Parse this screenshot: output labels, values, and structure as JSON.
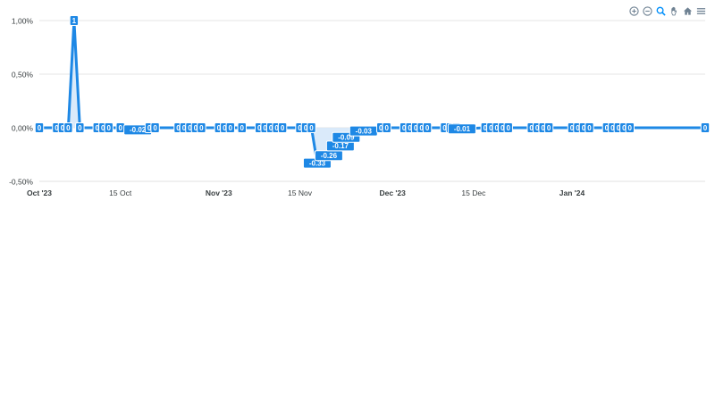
{
  "toolbar": {
    "icons": [
      "zoom-in-icon",
      "zoom-out-icon",
      "selection-zoom-icon",
      "pan-icon",
      "home-reset-icon",
      "menu-icon"
    ]
  },
  "colors": {
    "series": "#1e88e5",
    "label_bg": "#1e88e5",
    "label_text": "#ffffff",
    "area_fill": "#d6e8f9",
    "grid": "#e6e6e6",
    "axis_text": "#373d3f"
  },
  "chart_data": {
    "type": "line",
    "title": "",
    "xlabel": "",
    "ylabel": "",
    "y_tick_labels": [
      "1,00%",
      "0,50%",
      "0,00%",
      "-0,50%"
    ],
    "y_ticks": [
      1.0,
      0.5,
      0.0,
      -0.5
    ],
    "ylim": [
      -0.5,
      1.0
    ],
    "x_range": [
      "2023-10-01",
      "2024-01-24"
    ],
    "x_ticks": [
      {
        "date": "2023-10-01",
        "label": "Oct '23",
        "bold": true
      },
      {
        "date": "2023-10-15",
        "label": "15 Oct",
        "bold": false
      },
      {
        "date": "2023-11-01",
        "label": "Nov '23",
        "bold": true
      },
      {
        "date": "2023-11-15",
        "label": "15 Nov",
        "bold": false
      },
      {
        "date": "2023-12-01",
        "label": "Dec '23",
        "bold": true
      },
      {
        "date": "2023-12-15",
        "label": "15 Dec",
        "bold": false
      },
      {
        "date": "2024-01-01",
        "label": "Jan '24",
        "bold": true
      }
    ],
    "grid": true,
    "legend": "none",
    "series": [
      {
        "points": [
          {
            "x": "2023-10-01",
            "y": 0,
            "label": "0"
          },
          {
            "x": "2023-10-04",
            "y": 0,
            "label": "0"
          },
          {
            "x": "2023-10-05",
            "y": 0,
            "label": "0"
          },
          {
            "x": "2023-10-06",
            "y": 0,
            "label": "0"
          },
          {
            "x": "2023-10-07",
            "y": 1.0,
            "label": "1"
          },
          {
            "x": "2023-10-08",
            "y": 0,
            "label": "0"
          },
          {
            "x": "2023-10-11",
            "y": 0,
            "label": "0"
          },
          {
            "x": "2023-10-12",
            "y": 0,
            "label": "0"
          },
          {
            "x": "2023-10-13",
            "y": 0,
            "label": "0"
          },
          {
            "x": "2023-10-15",
            "y": 0,
            "label": "0"
          },
          {
            "x": "2023-10-18",
            "y": -0.02,
            "label": "-0.02"
          },
          {
            "x": "2023-10-20",
            "y": 0,
            "label": "0"
          },
          {
            "x": "2023-10-21",
            "y": 0,
            "label": "0"
          },
          {
            "x": "2023-10-25",
            "y": 0,
            "label": "0"
          },
          {
            "x": "2023-10-26",
            "y": 0,
            "label": "0"
          },
          {
            "x": "2023-10-27",
            "y": 0,
            "label": "0"
          },
          {
            "x": "2023-10-28",
            "y": 0,
            "label": "0"
          },
          {
            "x": "2023-10-29",
            "y": 0,
            "label": "0"
          },
          {
            "x": "2023-11-01",
            "y": 0,
            "label": "0"
          },
          {
            "x": "2023-11-02",
            "y": 0,
            "label": "0"
          },
          {
            "x": "2023-11-03",
            "y": 0,
            "label": "0"
          },
          {
            "x": "2023-11-05",
            "y": 0,
            "label": "0"
          },
          {
            "x": "2023-11-08",
            "y": 0,
            "label": "0"
          },
          {
            "x": "2023-11-09",
            "y": 0,
            "label": "0"
          },
          {
            "x": "2023-11-10",
            "y": 0,
            "label": "0"
          },
          {
            "x": "2023-11-11",
            "y": 0,
            "label": "0"
          },
          {
            "x": "2023-11-12",
            "y": 0,
            "label": "0"
          },
          {
            "x": "2023-11-15",
            "y": 0,
            "label": "0"
          },
          {
            "x": "2023-11-16",
            "y": 0,
            "label": "0"
          },
          {
            "x": "2023-11-17",
            "y": 0,
            "label": "0"
          },
          {
            "x": "2023-11-18",
            "y": -0.33,
            "label": "-0.33"
          },
          {
            "x": "2023-11-20",
            "y": -0.26,
            "label": "-0.26"
          },
          {
            "x": "2023-11-22",
            "y": -0.17,
            "label": "-0.17"
          },
          {
            "x": "2023-11-23",
            "y": -0.09,
            "label": "-0.09"
          },
          {
            "x": "2023-11-26",
            "y": -0.03,
            "label": "-0.03"
          },
          {
            "x": "2023-11-29",
            "y": 0,
            "label": "0"
          },
          {
            "x": "2023-11-30",
            "y": 0,
            "label": "0"
          },
          {
            "x": "2023-12-03",
            "y": 0,
            "label": "0"
          },
          {
            "x": "2023-12-04",
            "y": 0,
            "label": "0"
          },
          {
            "x": "2023-12-05",
            "y": 0,
            "label": "0"
          },
          {
            "x": "2023-12-06",
            "y": 0,
            "label": "0"
          },
          {
            "x": "2023-12-07",
            "y": 0,
            "label": "0"
          },
          {
            "x": "2023-12-10",
            "y": 0,
            "label": "0"
          },
          {
            "x": "2023-12-11",
            "y": 0,
            "label": "0"
          },
          {
            "x": "2023-12-12",
            "y": 0,
            "label": "0"
          },
          {
            "x": "2023-12-13",
            "y": -0.01,
            "label": "-0.01"
          },
          {
            "x": "2023-12-17",
            "y": 0,
            "label": "0"
          },
          {
            "x": "2023-12-18",
            "y": 0,
            "label": "0"
          },
          {
            "x": "2023-12-19",
            "y": 0,
            "label": "0"
          },
          {
            "x": "2023-12-20",
            "y": 0,
            "label": "0"
          },
          {
            "x": "2023-12-21",
            "y": 0,
            "label": "0"
          },
          {
            "x": "2023-12-25",
            "y": 0,
            "label": "0"
          },
          {
            "x": "2023-12-26",
            "y": 0,
            "label": "0"
          },
          {
            "x": "2023-12-27",
            "y": 0,
            "label": "0"
          },
          {
            "x": "2023-12-28",
            "y": 0,
            "label": "0"
          },
          {
            "x": "2024-01-01",
            "y": 0,
            "label": "0"
          },
          {
            "x": "2024-01-02",
            "y": 0,
            "label": "0"
          },
          {
            "x": "2024-01-03",
            "y": 0,
            "label": "0"
          },
          {
            "x": "2024-01-04",
            "y": 0,
            "label": "0"
          },
          {
            "x": "2024-01-07",
            "y": 0,
            "label": "0"
          },
          {
            "x": "2024-01-08",
            "y": 0,
            "label": "0"
          },
          {
            "x": "2024-01-09",
            "y": 0,
            "label": "0"
          },
          {
            "x": "2024-01-10",
            "y": 0,
            "label": "0"
          },
          {
            "x": "2024-01-11",
            "y": 0,
            "label": "0"
          },
          {
            "x": "2024-01-24",
            "y": 0,
            "label": "0"
          }
        ]
      }
    ]
  }
}
